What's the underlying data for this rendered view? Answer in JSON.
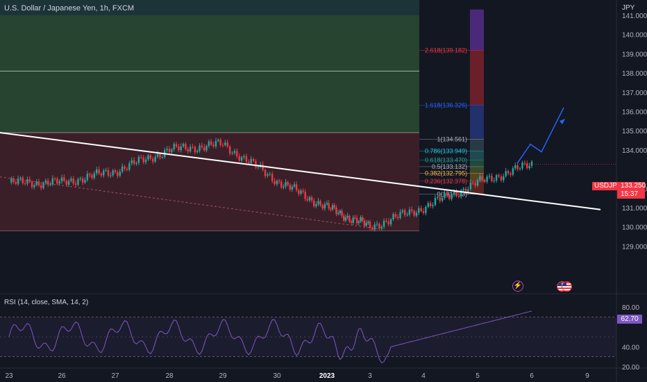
{
  "header": {
    "title": "U.S. Dollar / Japanese Yen, 1h, FXCM",
    "currency": "JPY"
  },
  "price_axis": {
    "labels": [
      "141.000",
      "140.000",
      "139.000",
      "138.000",
      "137.000",
      "136.000",
      "135.000",
      "134.000",
      "132.000",
      "131.000",
      "130.000",
      "129.000"
    ]
  },
  "time_axis": {
    "labels": [
      "23",
      "26",
      "27",
      "28",
      "29",
      "30",
      "2023",
      "3",
      "4",
      "5",
      "6",
      "9"
    ],
    "bold_label": "2023"
  },
  "current_price": {
    "symbol": "USDJPY",
    "value": "133.250",
    "countdown": "15:37"
  },
  "fib_levels": [
    {
      "label": "2.618(139.182)",
      "price": 139.182,
      "color": "#f23645"
    },
    {
      "label": "1.618(136.326)",
      "price": 136.326,
      "color": "#2962ff"
    },
    {
      "label": "1(134.561)",
      "price": 134.561,
      "color": "#b2b5be"
    },
    {
      "label": "0.786(133.949)",
      "price": 133.949,
      "color": "#26c6da"
    },
    {
      "label": "0.618(133.470)",
      "price": 133.47,
      "color": "#26a69a"
    },
    {
      "label": "0.5(133.132)",
      "price": 133.132,
      "color": "#b2b5be"
    },
    {
      "label": "0.382(132.795)",
      "price": 132.795,
      "color": "#ffb74d"
    },
    {
      "label": "0.236(132.378)",
      "price": 132.378,
      "color": "#f23645"
    },
    {
      "label": "0(131.703)",
      "price": 131.703,
      "color": "#b2b5be"
    }
  ],
  "rsi": {
    "title": "RSI (14, close, SMA, 14, 2)",
    "value": "62.70",
    "axis_labels": [
      "80.00",
      "40.00",
      "20.00"
    ],
    "color": "#7e57c2"
  },
  "colors": {
    "up": "#26a69a",
    "down": "#f23645",
    "background": "#131722",
    "trendline": "#ffffff",
    "projection": "#2962ff"
  },
  "chart_data": {
    "type": "candlestick",
    "title": "U.S. Dollar / Japanese Yen, 1h, FXCM",
    "ylabel": "JPY",
    "ylim": [
      128.6,
      141.3
    ],
    "x": [
      "23",
      "26",
      "27",
      "28",
      "29",
      "30",
      "2023",
      "3",
      "4",
      "5",
      "6",
      "9"
    ],
    "close_path": [
      {
        "x": "23",
        "y": 132.3
      },
      {
        "x": "26",
        "y": 132.3
      },
      {
        "x": "27",
        "y": 132.9
      },
      {
        "x": "28",
        "y": 134.0
      },
      {
        "x": "29",
        "y": 134.3
      },
      {
        "x": "30",
        "y": 132.4
      },
      {
        "x": "2023",
        "y": 131.0
      },
      {
        "x": "3",
        "y": 130.0
      },
      {
        "x": "4",
        "y": 131.0
      },
      {
        "x": "5",
        "y": 132.3
      },
      {
        "x": "6",
        "y": 133.25
      }
    ],
    "current": 133.25,
    "supply_zone": [
      134.9,
      141.0
    ],
    "demand_zone": [
      129.8,
      134.9
    ],
    "rsi_ylim": [
      15,
      85
    ],
    "rsi_levels": [
      70,
      30
    ],
    "rsi_current": 62.7
  }
}
